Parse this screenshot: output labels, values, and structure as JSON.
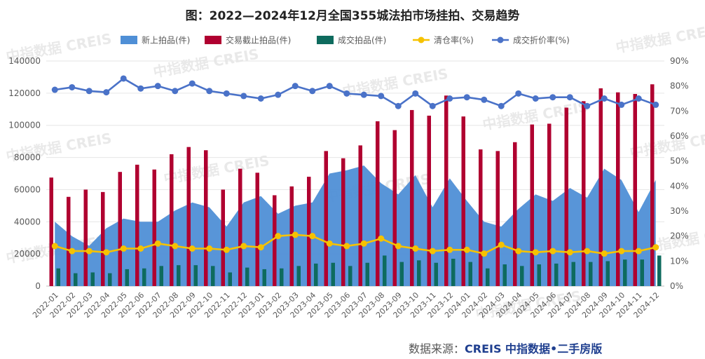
{
  "source": {
    "prefix": "数据来源：",
    "brand": "CREIS 中指数据•二手房版"
  },
  "watermark": {
    "text": "中指数据 CREIS"
  },
  "colors": {
    "new": "#4f8fd6",
    "deal": "#b00030",
    "sold": "#0e6b5e",
    "clear": "#f6c200",
    "disc": "#4a72c8"
  },
  "chart_data": {
    "type": "bar",
    "title": "图：2022—2024年12月全国355城法拍市场挂拍、交易趋势",
    "categories": [
      "2022-01",
      "2022-02",
      "2022-03",
      "2022-04",
      "2022-05",
      "2022-06",
      "2022-07",
      "2022-08",
      "2022-09",
      "2022-10",
      "2022-11",
      "2022-12",
      "2023-01",
      "2023-02",
      "2023-03",
      "2023-04",
      "2023-05",
      "2023-06",
      "2023-07",
      "2023-08",
      "2023-09",
      "2023-10",
      "2023-11",
      "2023-12",
      "2024-01",
      "2024-02",
      "2024-03",
      "2024-04",
      "2024-05",
      "2024-06",
      "2024-07",
      "2024-08",
      "2024-09",
      "2024-10",
      "2024-11",
      "2024-12"
    ],
    "y_left": {
      "min": 0,
      "max": 140000,
      "ticks": [
        0,
        20000,
        40000,
        60000,
        80000,
        100000,
        120000,
        140000
      ]
    },
    "y_right": {
      "min": 0,
      "max": 90,
      "ticks": [
        0,
        10,
        20,
        30,
        40,
        50,
        60,
        70,
        80,
        90
      ],
      "ticks_label": [
        "0%",
        "10%",
        "20%",
        "30%",
        "40%",
        "50%",
        "60%",
        "70%",
        "80%",
        "90%"
      ]
    },
    "legend_position": "top",
    "series": [
      {
        "name": "新上拍品(件)",
        "type": "area",
        "axis": "left",
        "values": [
          40000,
          31000,
          25000,
          36000,
          42000,
          40000,
          40000,
          47000,
          52000,
          49000,
          37000,
          52000,
          56000,
          45000,
          50000,
          52000,
          70000,
          72000,
          75000,
          64000,
          57000,
          69000,
          49000,
          67000,
          53000,
          40000,
          37000,
          48000,
          57000,
          53000,
          61000,
          55000,
          73000,
          66000,
          46000,
          66000
        ]
      },
      {
        "name": "交易截止拍品(件)",
        "type": "bar",
        "axis": "left",
        "values": [
          67500,
          55500,
          60000,
          58500,
          71000,
          75500,
          72500,
          82000,
          86500,
          84500,
          60000,
          73000,
          70500,
          56500,
          62000,
          68000,
          84000,
          79500,
          87500,
          102500,
          97000,
          109500,
          106000,
          118500,
          105500,
          85000,
          84000,
          89500,
          100500,
          101000,
          111000,
          115000,
          123000,
          120500,
          119500,
          125500
        ]
      },
      {
        "name": "成交拍品(件)",
        "type": "bar",
        "axis": "left",
        "values": [
          11000,
          8000,
          8500,
          8000,
          10500,
          11000,
          12500,
          13000,
          13000,
          12500,
          8500,
          11500,
          10500,
          11000,
          12500,
          14000,
          14500,
          12500,
          14500,
          19000,
          15000,
          16000,
          14500,
          17000,
          15000,
          11000,
          13500,
          12500,
          13500,
          14000,
          15000,
          15000,
          15500,
          16500,
          16500,
          19000
        ]
      },
      {
        "name": "清仓率(%)",
        "type": "line",
        "axis": "right",
        "values": [
          16,
          14,
          14,
          13.5,
          15,
          15,
          17,
          16,
          15,
          15,
          14.5,
          16,
          15.5,
          20,
          20.5,
          20,
          17,
          16,
          17,
          19,
          16,
          15,
          14,
          14.5,
          14.5,
          13,
          16.5,
          14,
          13.5,
          14,
          13.5,
          14,
          13,
          14,
          14,
          15.5
        ]
      },
      {
        "name": "成交折价率(%)",
        "type": "line",
        "axis": "right",
        "values": [
          78.5,
          79.5,
          78,
          77.5,
          83,
          79,
          80,
          78,
          81,
          78,
          77,
          76,
          75,
          76.5,
          80,
          78,
          80,
          77,
          76.5,
          76,
          72,
          77,
          72,
          75,
          75.5,
          74.5,
          72,
          77,
          75,
          75.5,
          75.5,
          72,
          75,
          72.5,
          75,
          72.5
        ]
      }
    ]
  }
}
